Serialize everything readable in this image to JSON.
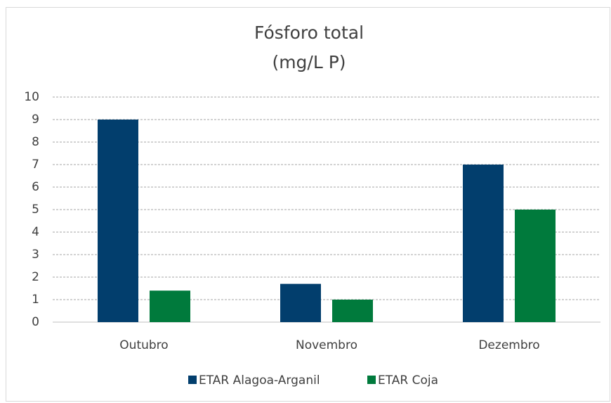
{
  "chart_data": {
    "type": "bar",
    "title": "Fósforo total",
    "subtitle": "(mg/L P)",
    "categories": [
      "Outubro",
      "Novembro",
      "Dezembro"
    ],
    "series": [
      {
        "name": "ETAR Alagoa-Arganil",
        "color": "#023e6d",
        "values": [
          9,
          1.7,
          7
        ]
      },
      {
        "name": "ETAR Coja",
        "color": "#007a3c",
        "values": [
          1.4,
          1,
          5
        ]
      }
    ],
    "ylim": [
      0,
      10
    ],
    "yticks": [
      0,
      1,
      2,
      3,
      4,
      5,
      6,
      7,
      8,
      9,
      10
    ],
    "grid": true,
    "legend": "bottom"
  }
}
